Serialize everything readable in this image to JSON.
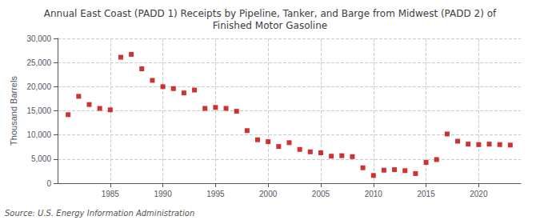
{
  "chart_data": {
    "type": "scatter",
    "title": "Annual East Coast (PADD 1) Receipts by Pipeline, Tanker, and Barge from Midwest (PADD 2) of\nFinished Motor Gasoline",
    "ylabel": "Thousand Barrels",
    "source": "Source: U.S. Energy Information Administration",
    "color": "#c00000",
    "marker": "square",
    "x": [
      1981,
      1982,
      1983,
      1984,
      1985,
      1986,
      1987,
      1988,
      1989,
      1990,
      1991,
      1992,
      1993,
      1994,
      1995,
      1996,
      1997,
      1998,
      1999,
      2000,
      2001,
      2002,
      2003,
      2004,
      2005,
      2006,
      2007,
      2008,
      2009,
      2010,
      2011,
      2012,
      2013,
      2014,
      2015,
      2016,
      2017,
      2018,
      2019,
      2020,
      2021,
      2022,
      2023
    ],
    "values": [
      14200,
      18000,
      16300,
      15500,
      15200,
      26100,
      26700,
      23700,
      21300,
      20000,
      19600,
      18700,
      19300,
      15500,
      15700,
      15500,
      14900,
      10900,
      9000,
      8600,
      7600,
      8400,
      7000,
      6500,
      6300,
      5600,
      5700,
      5500,
      3200,
      1600,
      2700,
      2800,
      2600,
      2000,
      4300,
      4900,
      10200,
      8700,
      8100,
      8000,
      8100,
      8000,
      7900
    ],
    "xlim": [
      1980,
      2024
    ],
    "xticks": [
      1985,
      1990,
      1995,
      2000,
      2005,
      2010,
      2015,
      2020
    ],
    "ylim": [
      0,
      30000
    ],
    "yticks": [
      0,
      {
        "value": 5000,
        "label": "5,000"
      },
      {
        "value": 10000,
        "label": "10,000"
      },
      {
        "value": 15000,
        "label": "15,000"
      },
      {
        "value": 20000,
        "label": "20,000"
      },
      {
        "value": 25000,
        "label": "25,000"
      },
      {
        "value": 30000,
        "label": "30,000"
      }
    ],
    "grid": true
  }
}
